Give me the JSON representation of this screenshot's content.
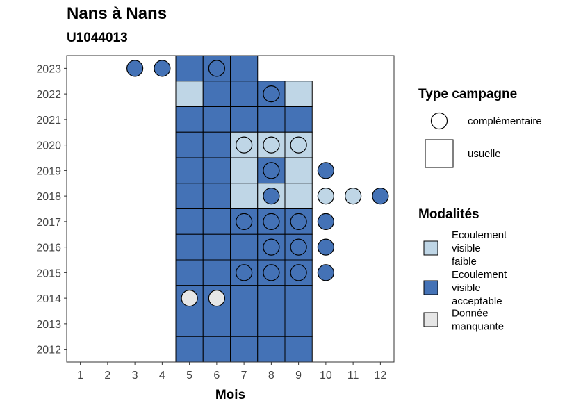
{
  "header": {
    "title": "Nans à Nans",
    "subtitle": "U1044013"
  },
  "chart_data": {
    "type": "heatmap",
    "xlabel": "Mois",
    "ylabel": "",
    "x_ticks": [
      "1",
      "2",
      "3",
      "4",
      "5",
      "6",
      "7",
      "8",
      "9",
      "10",
      "11",
      "12"
    ],
    "y_ticks": [
      "2012",
      "2013",
      "2014",
      "2015",
      "2016",
      "2017",
      "2018",
      "2019",
      "2020",
      "2021",
      "2022",
      "2023"
    ],
    "xlim": [
      0.5,
      12.5
    ],
    "ylim": [
      2011.5,
      2023.5
    ],
    "grid": false,
    "legend_placement": "right",
    "colors": {
      "faible": "#bfd6e6",
      "acceptable": "#4472b6",
      "manquante": "#e6e6e6"
    },
    "legend_type": {
      "title": "Type campagne",
      "items": [
        {
          "label": "complémentaire",
          "shape": "circle"
        },
        {
          "label": "usuelle",
          "shape": "square"
        }
      ]
    },
    "legend_modalites": {
      "title": "Modalités",
      "items": [
        {
          "key": "faible",
          "lines": [
            "Ecoulement",
            "visible",
            "faible"
          ]
        },
        {
          "key": "acceptable",
          "lines": [
            "Ecoulement",
            "visible",
            "acceptable"
          ]
        },
        {
          "key": "manquante",
          "lines": [
            "Donnée",
            "manquante"
          ]
        }
      ]
    },
    "points": [
      {
        "year": 2023,
        "month": 3,
        "type": "complémentaire",
        "mod": "acceptable"
      },
      {
        "year": 2023,
        "month": 4,
        "type": "complémentaire",
        "mod": "acceptable"
      },
      {
        "year": 2023,
        "month": 5,
        "type": "usuelle",
        "mod": "acceptable"
      },
      {
        "year": 2023,
        "month": 6,
        "type": "usuelle",
        "mod": "acceptable"
      },
      {
        "year": 2023,
        "month": 6,
        "type": "complémentaire",
        "mod": "acceptable"
      },
      {
        "year": 2023,
        "month": 7,
        "type": "usuelle",
        "mod": "acceptable"
      },
      {
        "year": 2022,
        "month": 5,
        "type": "usuelle",
        "mod": "faible"
      },
      {
        "year": 2022,
        "month": 6,
        "type": "usuelle",
        "mod": "acceptable"
      },
      {
        "year": 2022,
        "month": 7,
        "type": "usuelle",
        "mod": "acceptable"
      },
      {
        "year": 2022,
        "month": 8,
        "type": "usuelle",
        "mod": "acceptable"
      },
      {
        "year": 2022,
        "month": 8,
        "type": "complémentaire",
        "mod": "acceptable"
      },
      {
        "year": 2022,
        "month": 9,
        "type": "usuelle",
        "mod": "faible"
      },
      {
        "year": 2021,
        "month": 5,
        "type": "usuelle",
        "mod": "acceptable"
      },
      {
        "year": 2021,
        "month": 6,
        "type": "usuelle",
        "mod": "acceptable"
      },
      {
        "year": 2021,
        "month": 7,
        "type": "usuelle",
        "mod": "acceptable"
      },
      {
        "year": 2021,
        "month": 8,
        "type": "usuelle",
        "mod": "acceptable"
      },
      {
        "year": 2021,
        "month": 9,
        "type": "usuelle",
        "mod": "acceptable"
      },
      {
        "year": 2020,
        "month": 5,
        "type": "usuelle",
        "mod": "acceptable"
      },
      {
        "year": 2020,
        "month": 6,
        "type": "usuelle",
        "mod": "acceptable"
      },
      {
        "year": 2020,
        "month": 7,
        "type": "usuelle",
        "mod": "faible"
      },
      {
        "year": 2020,
        "month": 7,
        "type": "complémentaire",
        "mod": "faible"
      },
      {
        "year": 2020,
        "month": 8,
        "type": "usuelle",
        "mod": "faible"
      },
      {
        "year": 2020,
        "month": 8,
        "type": "complémentaire",
        "mod": "faible"
      },
      {
        "year": 2020,
        "month": 9,
        "type": "usuelle",
        "mod": "faible"
      },
      {
        "year": 2020,
        "month": 9,
        "type": "complémentaire",
        "mod": "faible"
      },
      {
        "year": 2019,
        "month": 5,
        "type": "usuelle",
        "mod": "acceptable"
      },
      {
        "year": 2019,
        "month": 6,
        "type": "usuelle",
        "mod": "acceptable"
      },
      {
        "year": 2019,
        "month": 7,
        "type": "usuelle",
        "mod": "faible"
      },
      {
        "year": 2019,
        "month": 8,
        "type": "usuelle",
        "mod": "acceptable"
      },
      {
        "year": 2019,
        "month": 8,
        "type": "complémentaire",
        "mod": "acceptable"
      },
      {
        "year": 2019,
        "month": 9,
        "type": "usuelle",
        "mod": "faible"
      },
      {
        "year": 2019,
        "month": 10,
        "type": "complémentaire",
        "mod": "acceptable"
      },
      {
        "year": 2018,
        "month": 5,
        "type": "usuelle",
        "mod": "acceptable"
      },
      {
        "year": 2018,
        "month": 6,
        "type": "usuelle",
        "mod": "acceptable"
      },
      {
        "year": 2018,
        "month": 7,
        "type": "usuelle",
        "mod": "faible"
      },
      {
        "year": 2018,
        "month": 8,
        "type": "usuelle",
        "mod": "faible"
      },
      {
        "year": 2018,
        "month": 8,
        "type": "complémentaire",
        "mod": "acceptable"
      },
      {
        "year": 2018,
        "month": 9,
        "type": "usuelle",
        "mod": "faible"
      },
      {
        "year": 2018,
        "month": 10,
        "type": "complémentaire",
        "mod": "faible"
      },
      {
        "year": 2018,
        "month": 11,
        "type": "complémentaire",
        "mod": "faible"
      },
      {
        "year": 2018,
        "month": 12,
        "type": "complémentaire",
        "mod": "acceptable"
      },
      {
        "year": 2017,
        "month": 5,
        "type": "usuelle",
        "mod": "acceptable"
      },
      {
        "year": 2017,
        "month": 6,
        "type": "usuelle",
        "mod": "acceptable"
      },
      {
        "year": 2017,
        "month": 7,
        "type": "usuelle",
        "mod": "acceptable"
      },
      {
        "year": 2017,
        "month": 7,
        "type": "complémentaire",
        "mod": "acceptable"
      },
      {
        "year": 2017,
        "month": 8,
        "type": "usuelle",
        "mod": "acceptable"
      },
      {
        "year": 2017,
        "month": 8,
        "type": "complémentaire",
        "mod": "acceptable"
      },
      {
        "year": 2017,
        "month": 9,
        "type": "usuelle",
        "mod": "acceptable"
      },
      {
        "year": 2017,
        "month": 9,
        "type": "complémentaire",
        "mod": "acceptable"
      },
      {
        "year": 2017,
        "month": 10,
        "type": "complémentaire",
        "mod": "acceptable"
      },
      {
        "year": 2016,
        "month": 5,
        "type": "usuelle",
        "mod": "acceptable"
      },
      {
        "year": 2016,
        "month": 6,
        "type": "usuelle",
        "mod": "acceptable"
      },
      {
        "year": 2016,
        "month": 7,
        "type": "usuelle",
        "mod": "acceptable"
      },
      {
        "year": 2016,
        "month": 8,
        "type": "usuelle",
        "mod": "acceptable"
      },
      {
        "year": 2016,
        "month": 8,
        "type": "complémentaire",
        "mod": "acceptable"
      },
      {
        "year": 2016,
        "month": 9,
        "type": "usuelle",
        "mod": "acceptable"
      },
      {
        "year": 2016,
        "month": 9,
        "type": "complémentaire",
        "mod": "acceptable"
      },
      {
        "year": 2016,
        "month": 10,
        "type": "complémentaire",
        "mod": "acceptable"
      },
      {
        "year": 2015,
        "month": 5,
        "type": "usuelle",
        "mod": "acceptable"
      },
      {
        "year": 2015,
        "month": 6,
        "type": "usuelle",
        "mod": "acceptable"
      },
      {
        "year": 2015,
        "month": 7,
        "type": "usuelle",
        "mod": "acceptable"
      },
      {
        "year": 2015,
        "month": 7,
        "type": "complémentaire",
        "mod": "acceptable"
      },
      {
        "year": 2015,
        "month": 8,
        "type": "usuelle",
        "mod": "acceptable"
      },
      {
        "year": 2015,
        "month": 8,
        "type": "complémentaire",
        "mod": "acceptable"
      },
      {
        "year": 2015,
        "month": 9,
        "type": "usuelle",
        "mod": "acceptable"
      },
      {
        "year": 2015,
        "month": 9,
        "type": "complémentaire",
        "mod": "acceptable"
      },
      {
        "year": 2015,
        "month": 10,
        "type": "complémentaire",
        "mod": "acceptable"
      },
      {
        "year": 2014,
        "month": 5,
        "type": "usuelle",
        "mod": "acceptable"
      },
      {
        "year": 2014,
        "month": 5,
        "type": "complémentaire",
        "mod": "manquante"
      },
      {
        "year": 2014,
        "month": 6,
        "type": "usuelle",
        "mod": "acceptable"
      },
      {
        "year": 2014,
        "month": 6,
        "type": "complémentaire",
        "mod": "manquante"
      },
      {
        "year": 2014,
        "month": 7,
        "type": "usuelle",
        "mod": "acceptable"
      },
      {
        "year": 2014,
        "month": 8,
        "type": "usuelle",
        "mod": "acceptable"
      },
      {
        "year": 2014,
        "month": 9,
        "type": "usuelle",
        "mod": "acceptable"
      },
      {
        "year": 2013,
        "month": 5,
        "type": "usuelle",
        "mod": "acceptable"
      },
      {
        "year": 2013,
        "month": 6,
        "type": "usuelle",
        "mod": "acceptable"
      },
      {
        "year": 2013,
        "month": 7,
        "type": "usuelle",
        "mod": "acceptable"
      },
      {
        "year": 2013,
        "month": 8,
        "type": "usuelle",
        "mod": "acceptable"
      },
      {
        "year": 2013,
        "month": 9,
        "type": "usuelle",
        "mod": "acceptable"
      },
      {
        "year": 2012,
        "month": 5,
        "type": "usuelle",
        "mod": "acceptable"
      },
      {
        "year": 2012,
        "month": 6,
        "type": "usuelle",
        "mod": "acceptable"
      },
      {
        "year": 2012,
        "month": 7,
        "type": "usuelle",
        "mod": "acceptable"
      },
      {
        "year": 2012,
        "month": 8,
        "type": "usuelle",
        "mod": "acceptable"
      },
      {
        "year": 2012,
        "month": 9,
        "type": "usuelle",
        "mod": "acceptable"
      }
    ]
  }
}
